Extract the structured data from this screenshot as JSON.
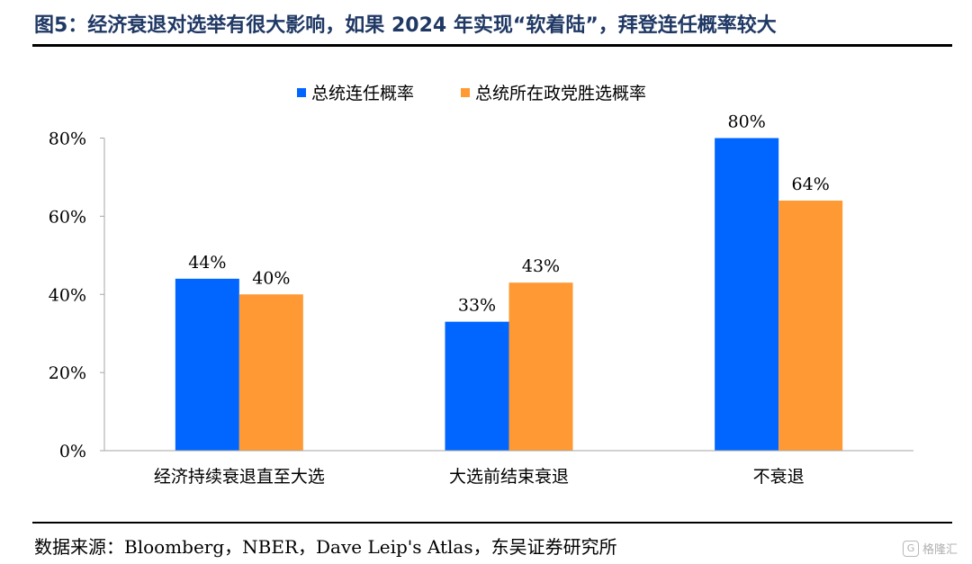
{
  "header": {
    "title": "图5：经济衰退对选举有很大影响，如果 2024 年实现“软着陆”，拜登连任概率较大"
  },
  "footer": {
    "source": "数据来源：Bloomberg，NBER，Dave Leip's Atlas，东吴证券研究所"
  },
  "watermark": {
    "logo": "G",
    "text": "格隆汇"
  },
  "chart_data": {
    "type": "bar",
    "categories": [
      "经济持续衰退直至大选",
      "大选前结束衰退",
      "不衰退"
    ],
    "series": [
      {
        "name": "总统连任概率",
        "values": [
          44,
          33,
          80
        ],
        "color": "#0066ff",
        "labels": [
          "44%",
          "33%",
          "80%"
        ]
      },
      {
        "name": "总统所在政党胜选概率",
        "values": [
          40,
          43,
          64
        ],
        "color": "#ff9933",
        "labels": [
          "40%",
          "43%",
          "64%"
        ]
      }
    ],
    "yticks": [
      "0%",
      "20%",
      "40%",
      "60%",
      "80%"
    ],
    "ytick_values": [
      0,
      20,
      40,
      60,
      80
    ],
    "ylim": [
      0,
      80
    ],
    "grid": false,
    "legend_position": "top"
  }
}
